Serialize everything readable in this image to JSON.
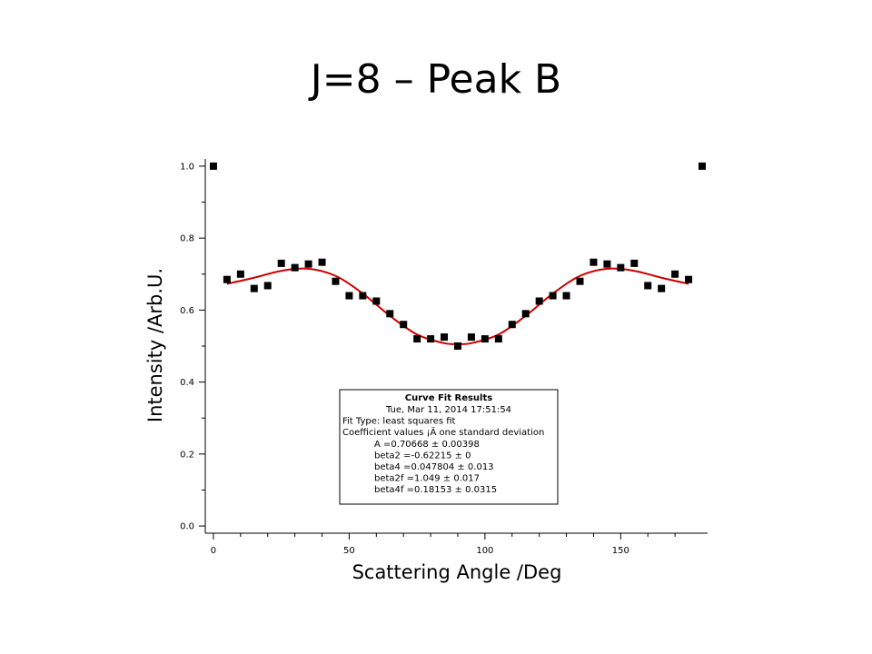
{
  "slide": {
    "title": "J=8 – Peak B"
  },
  "chart_data": {
    "type": "scatter",
    "xlabel": "Scattering Angle /Deg",
    "ylabel": "Intensity /Arb.U.",
    "xlim": [
      -3,
      182
    ],
    "ylim": [
      -0.02,
      1.02
    ],
    "x_ticks": [
      0,
      50,
      100,
      150
    ],
    "y_ticks": [
      0.0,
      0.2,
      0.4,
      0.6,
      0.8,
      1.0
    ],
    "y_tick_labels": [
      "0.0",
      "0.2",
      "0.4",
      "0.6",
      "0.8",
      "1.0"
    ],
    "grid": false,
    "colors": {
      "points": "#000000",
      "fit": "#cc0000"
    },
    "points": {
      "x": [
        0,
        5,
        10,
        15,
        20,
        25,
        30,
        35,
        40,
        45,
        50,
        55,
        60,
        65,
        70,
        75,
        80,
        85,
        90,
        95,
        100,
        105,
        110,
        115,
        120,
        125,
        130,
        135,
        140,
        145,
        150,
        155,
        160,
        165,
        170,
        175,
        180
      ],
      "y": [
        1.0,
        0.685,
        0.7,
        0.66,
        0.668,
        0.73,
        0.718,
        0.728,
        0.733,
        0.68,
        0.64,
        0.64,
        0.625,
        0.59,
        0.56,
        0.52,
        0.52,
        0.525,
        0.5,
        0.525,
        0.52,
        0.52,
        0.56,
        0.59,
        0.625,
        0.64,
        0.64,
        0.68,
        0.733,
        0.728,
        0.718,
        0.73,
        0.668,
        0.66,
        0.7,
        0.685,
        1.0
      ]
    },
    "fit": {
      "x": [
        5,
        15,
        25,
        35,
        45,
        55,
        65,
        75,
        85,
        90,
        95,
        105,
        115,
        125,
        135,
        145,
        155,
        165,
        175
      ],
      "y": [
        0.673,
        0.69,
        0.709,
        0.715,
        0.695,
        0.646,
        0.584,
        0.532,
        0.508,
        0.506,
        0.508,
        0.532,
        0.584,
        0.646,
        0.695,
        0.715,
        0.709,
        0.69,
        0.673
      ]
    },
    "annotation": {
      "title": "Curve Fit Results",
      "lines": [
        "Tue, Mar 11, 2014 17:51:54",
        "Fit Type: least squares fit",
        "Coefficient values ¡Ä one standard deviation",
        "A      =0.70668 ± 0.00398",
        "beta2 =-0.62215 ± 0",
        "beta4 =0.047804 ± 0.013",
        "beta2f =1.049 ± 0.017",
        "beta4f =0.18153 ± 0.0315"
      ]
    }
  }
}
